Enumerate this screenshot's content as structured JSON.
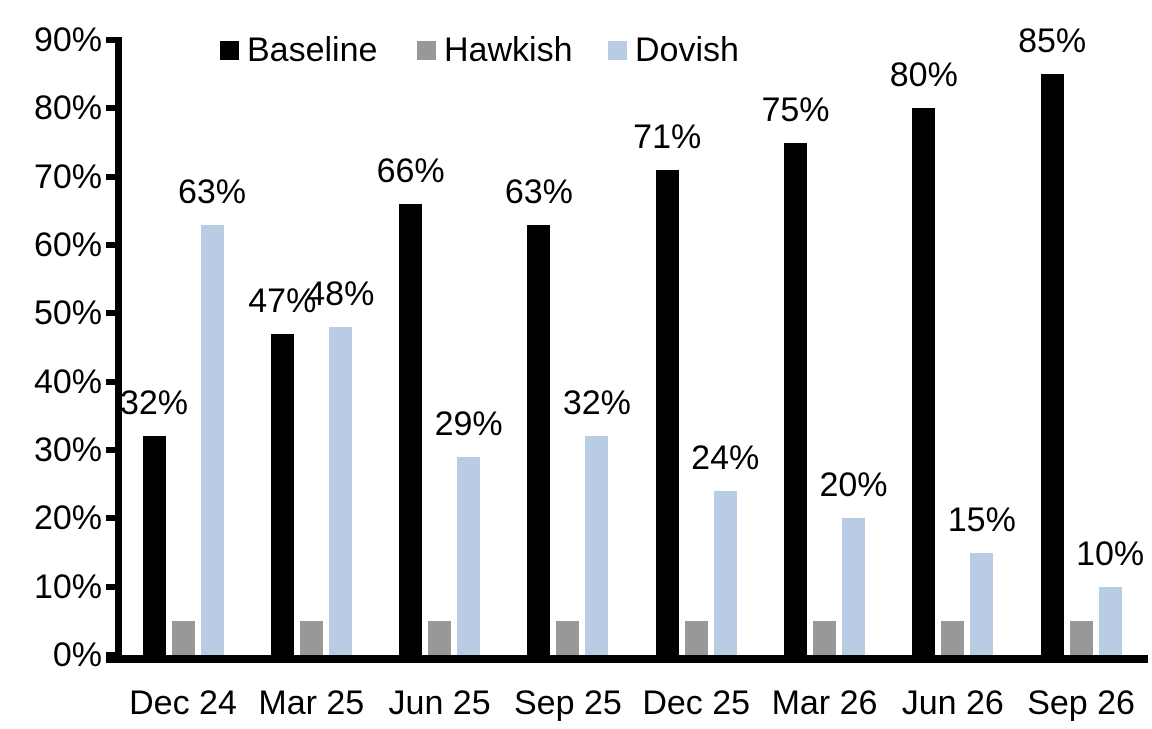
{
  "chart_data": {
    "type": "bar",
    "title": "",
    "xlabel": "",
    "ylabel": "",
    "grid": false,
    "categories": [
      "Dec 24",
      "Mar 25",
      "Jun 25",
      "Sep 25",
      "Dec 25",
      "Mar 26",
      "Jun 26",
      "Sep 26"
    ],
    "series": [
      {
        "name": "Baseline",
        "color": "#000000",
        "values": [
          32,
          47,
          66,
          63,
          71,
          75,
          80,
          85
        ],
        "data_labels": [
          "32%",
          "47%",
          "66%",
          "63%",
          "71%",
          "75%",
          "80%",
          "85%"
        ],
        "show_labels": true
      },
      {
        "name": "Hawkish",
        "color": "#989898",
        "values": [
          5,
          5,
          5,
          5,
          5,
          5,
          5,
          5
        ],
        "data_labels": [],
        "show_labels": false
      },
      {
        "name": "Dovish",
        "color": "#B8CCE4",
        "values": [
          63,
          48,
          29,
          32,
          24,
          20,
          15,
          10
        ],
        "data_labels": [
          "63%",
          "48%",
          "29%",
          "32%",
          "24%",
          "20%",
          "15%",
          "10%"
        ],
        "show_labels": true
      }
    ],
    "y_axis": {
      "min": 0,
      "max": 90,
      "step": 10,
      "tick_labels": [
        "0%",
        "10%",
        "20%",
        "30%",
        "40%",
        "50%",
        "60%",
        "70%",
        "80%",
        "90%"
      ]
    },
    "legend": {
      "position": "top",
      "entries": [
        "Baseline",
        "Hawkish",
        "Dovish"
      ]
    },
    "text_color": "#000000",
    "axis_color": "#000000"
  }
}
